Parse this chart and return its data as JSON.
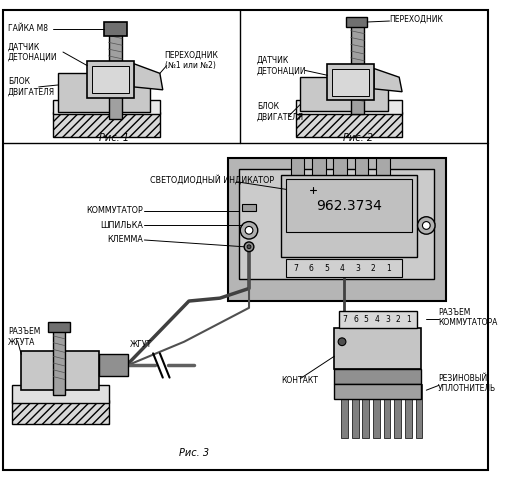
{
  "bg_color": "#ffffff",
  "labels": {
    "gaika": "ГАЙКА М8",
    "datchik1": "ДАТЧИК\nДЕТОНАЦИИ",
    "blok1": "БЛОК\nДВИГАТЕЛЯ",
    "perehodnik1": "ПЕРЕХОДНИК\n(№1 или №2)",
    "ris1": "Рис. 1",
    "perehodnik2": "ПЕРЕХОДНИК",
    "datchik2": "ДАТЧИК\nДЕТОНАЦИИ",
    "blok2": "БЛОК\nДВИГАТЕЛЯ",
    "ris2": "Рис. 2",
    "svetodiod": "СВЕТОДИОДНЫЙ ИНДИКАТОР",
    "kommutator": "КОММУТАТОР",
    "shpilka": "ШПИЛЬКА",
    "klemma": "КЛЕММА",
    "razem_jguta": "РАЗЪЕМ\nЖГУТА",
    "jgut": "ЖГУТ",
    "kontakt": "КОНТАКТ",
    "razem_komm": "РАЗЪЕМ\nКОММУТАТОРА",
    "rezin": "РЕЗИНОВЫЙ\nУПЛОТНИТЕЛЬ",
    "ris3": "Рис. 3",
    "module_num": "962.3734",
    "pins": [
      "7",
      "6",
      "5",
      "4",
      "3",
      "2",
      "1"
    ]
  }
}
